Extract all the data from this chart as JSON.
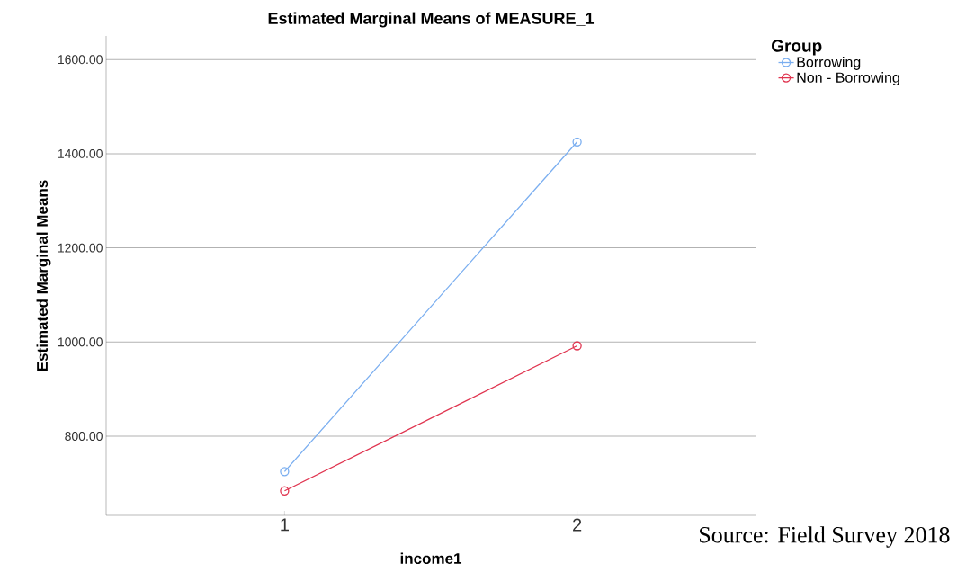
{
  "chart_data": {
    "type": "line",
    "title": "Estimated Marginal Means of MEASURE_1",
    "xlabel": "income1",
    "ylabel": "Estimated Marginal Means",
    "legend_title": "Group",
    "categories": [
      "1",
      "2"
    ],
    "series": [
      {
        "name": "Borrowing",
        "color": "#7aaef0",
        "values": [
          725,
          1425
        ]
      },
      {
        "name": "Non - Borrowing",
        "color": "#e0344f",
        "values": [
          684,
          992
        ]
      }
    ],
    "ylim": [
      632,
      1650
    ],
    "yticks": [
      {
        "value": 800,
        "label": "800.00"
      },
      {
        "value": 1000,
        "label": "1000.00"
      },
      {
        "value": 1200,
        "label": "1200.00"
      },
      {
        "value": 1400,
        "label": "1400.00"
      },
      {
        "value": 1600,
        "label": "1600.00"
      }
    ],
    "grid": "y",
    "legend": "top right",
    "marker": "circle",
    "line_style": "solid",
    "annotations": [
      "Source: Field Survey 2018"
    ]
  }
}
